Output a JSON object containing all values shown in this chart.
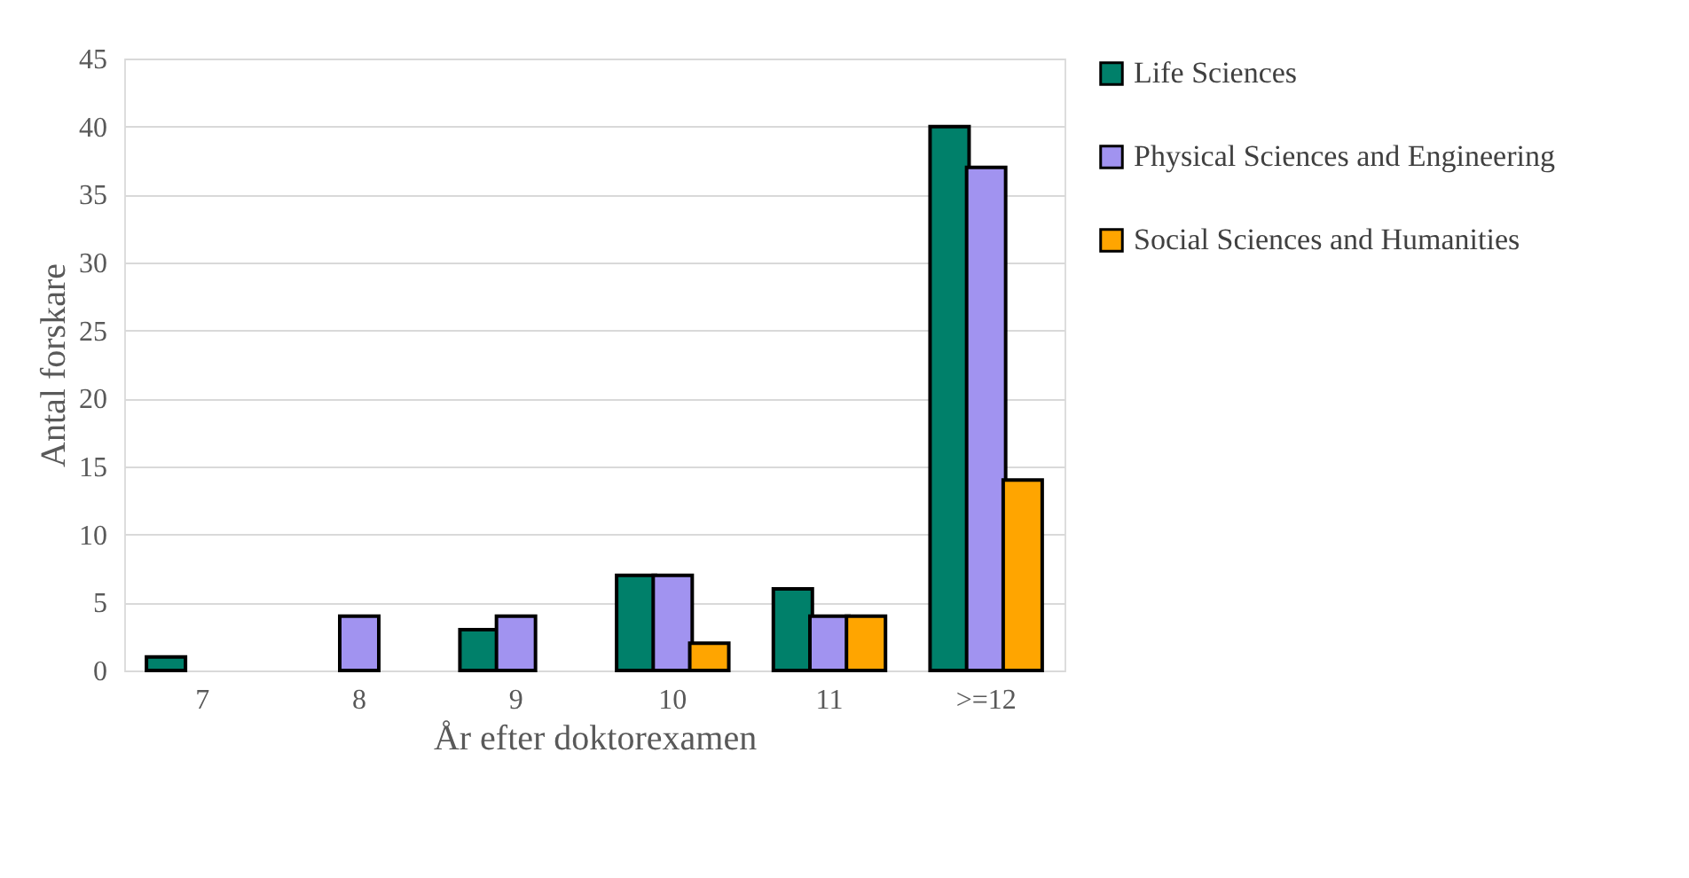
{
  "chart_data": {
    "type": "bar",
    "xlabel": "År efter doktorexamen",
    "ylabel": "Antal forskare",
    "categories": [
      "7",
      "8",
      "9",
      "10",
      "11",
      ">=12"
    ],
    "series": [
      {
        "name": "Life Sciences",
        "color": "#00806a",
        "values": [
          1,
          null,
          3,
          7,
          6,
          40
        ]
      },
      {
        "name": "Physical Sciences and Engineering",
        "color": "#a193f0",
        "values": [
          null,
          4,
          4,
          7,
          4,
          37
        ]
      },
      {
        "name": "Social Sciences and Humanities",
        "color": "#ffa500",
        "values": [
          null,
          null,
          null,
          2,
          4,
          14
        ]
      }
    ],
    "ylim": [
      0,
      45
    ],
    "yticks": [
      0,
      5,
      10,
      15,
      20,
      25,
      30,
      35,
      40,
      45
    ],
    "grid": "y",
    "legend": "right"
  }
}
